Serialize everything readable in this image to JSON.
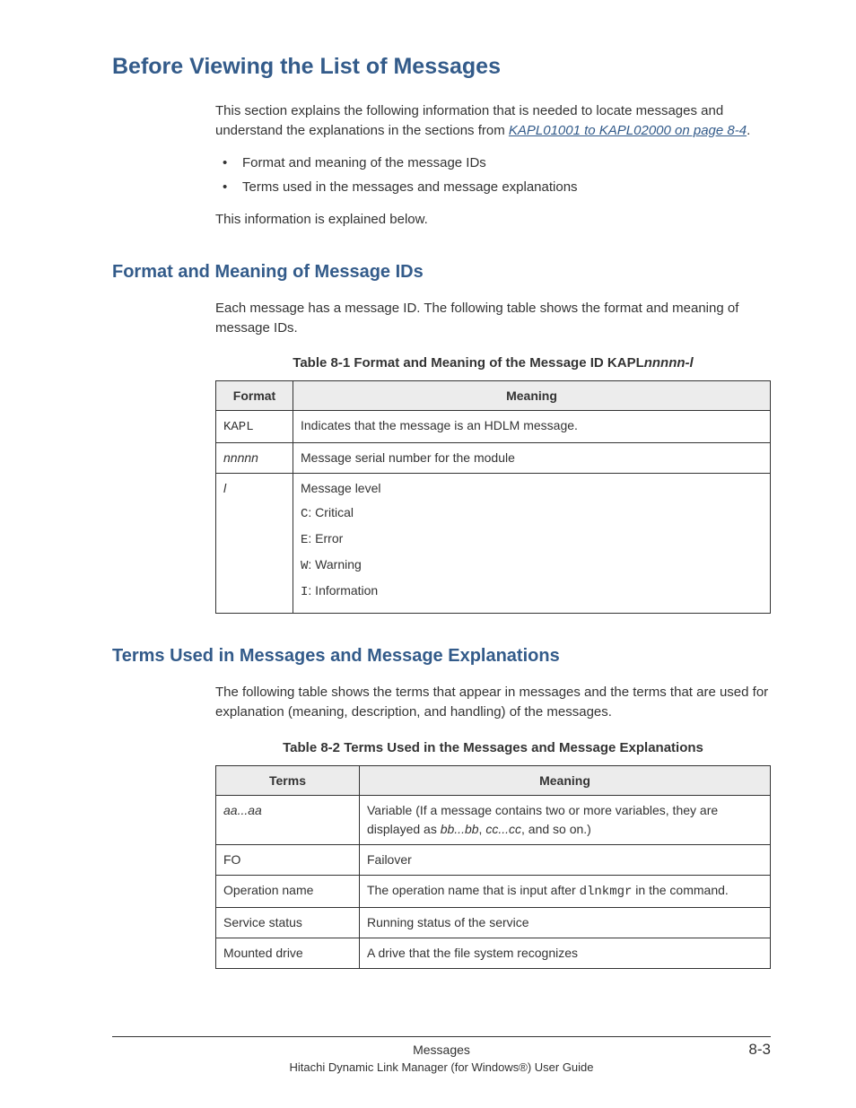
{
  "heading1": "Before Viewing the List of Messages",
  "intro": {
    "p1_a": "This section explains the following information that is needed to locate messages and understand the explanations in the sections from ",
    "link": "KAPL01001 to KAPL02000 on page 8-4",
    "p1_b": ".",
    "bullets": [
      "Format and meaning of the message IDs",
      "Terms used in the messages and message explanations"
    ],
    "p2": "This information is explained below."
  },
  "section_format": {
    "heading": "Format and Meaning of Message IDs",
    "p1": "Each message has a message ID. The following table shows the format and meaning of message IDs.",
    "table_caption_a": "Table 8-1 Format and Meaning of the Message ID KAPL",
    "table_caption_b": "nnnnn-l",
    "columns": [
      "Format",
      "Meaning"
    ],
    "rows": {
      "r1": {
        "fmt": "KAPL",
        "fmt_mono": true,
        "meaning": "Indicates that the message is an HDLM message."
      },
      "r2": {
        "fmt": "nnnnn",
        "fmt_ital": true,
        "meaning": "Message serial number for the module"
      },
      "r3": {
        "fmt": "l",
        "fmt_ital": true,
        "title": "Message level",
        "levels": [
          {
            "code": "C",
            "label": ": Critical"
          },
          {
            "code": "E",
            "label": ": Error"
          },
          {
            "code": "W",
            "label": ": Warning"
          },
          {
            "code": "I",
            "label": ": Information"
          }
        ]
      }
    }
  },
  "section_terms": {
    "heading": "Terms Used in Messages and Message Explanations",
    "p1": "The following table shows the terms that appear in messages and the terms that are used for explanation (meaning, description, and handling) of the messages.",
    "table_caption": "Table 8-2 Terms Used in the Messages and Message Explanations",
    "columns": [
      "Terms",
      "Meaning"
    ],
    "rows": {
      "r1": {
        "term": "aa...aa",
        "term_ital": true,
        "m_a": "Variable (If a message contains two or more variables, they are displayed as ",
        "m_b": "bb...bb",
        "m_c": ", ",
        "m_d": "cc...cc",
        "m_e": ", and so on.)"
      },
      "r2": {
        "term": "FO",
        "meaning": "Failover"
      },
      "r3": {
        "term": "Operation name",
        "m_a": "The operation name that is input after ",
        "m_code": "dlnkmgr",
        "m_b": " in the command."
      },
      "r4": {
        "term": "Service status",
        "meaning": "Running status of the service"
      },
      "r5": {
        "term": "Mounted drive",
        "meaning": "A drive that the file system recognizes"
      }
    }
  },
  "footer": {
    "center": "Messages",
    "page": "8-3",
    "bottom": "Hitachi Dynamic Link Manager (for Windows®) User Guide"
  }
}
